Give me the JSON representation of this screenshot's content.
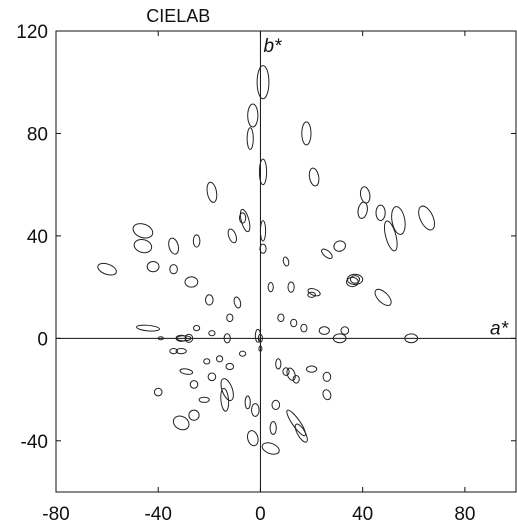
{
  "chart_data": {
    "type": "scatter",
    "title": "CIELAB",
    "xlabel": "a*",
    "ylabel": "b*",
    "xlim": [
      -80,
      100
    ],
    "ylim": [
      -60,
      120
    ],
    "x_ticks": [
      -80,
      -40,
      0,
      40,
      80
    ],
    "y_ticks": [
      -40,
      0,
      40,
      80,
      120
    ],
    "grid": false,
    "axes_through_origin": true,
    "series": [
      {
        "marker": "ellipse",
        "points": [
          {
            "a": 1,
            "b": 100,
            "ra": 2.3,
            "rb": 6.5,
            "angle": 0
          },
          {
            "a": -3,
            "b": 87,
            "ra": 2.0,
            "rb": 4.5,
            "angle": 0
          },
          {
            "a": -4,
            "b": 78,
            "ra": 1.2,
            "rb": 4.2,
            "angle": 0
          },
          {
            "a": 18,
            "b": 80,
            "ra": 1.8,
            "rb": 4.5,
            "angle": 0
          },
          {
            "a": 1,
            "b": 65,
            "ra": 1.4,
            "rb": 5.0,
            "angle": 0
          },
          {
            "a": 21,
            "b": 63,
            "ra": 1.8,
            "rb": 3.5,
            "angle": 10
          },
          {
            "a": -19,
            "b": 57,
            "ra": 1.8,
            "rb": 4.0,
            "angle": 10
          },
          {
            "a": -6,
            "b": 46,
            "ra": 1.5,
            "rb": 4.5,
            "angle": 15
          },
          {
            "a": -7,
            "b": 47,
            "ra": 1.2,
            "rb": 2.0,
            "angle": 0
          },
          {
            "a": 1,
            "b": 42,
            "ra": 1.0,
            "rb": 4.0,
            "angle": 0
          },
          {
            "a": -11,
            "b": 40,
            "ra": 1.4,
            "rb": 2.8,
            "angle": 20
          },
          {
            "a": -25,
            "b": 38,
            "ra": 1.3,
            "rb": 2.4,
            "angle": 0
          },
          {
            "a": -34,
            "b": 36,
            "ra": 1.8,
            "rb": 3.2,
            "angle": 15
          },
          {
            "a": -46,
            "b": 42,
            "ra": 4.0,
            "rb": 2.6,
            "angle": -20
          },
          {
            "a": -46,
            "b": 36,
            "ra": 3.5,
            "rb": 2.5,
            "angle": -15
          },
          {
            "a": -42,
            "b": 28,
            "ra": 2.3,
            "rb": 2.0,
            "angle": 0
          },
          {
            "a": -60,
            "b": 27,
            "ra": 3.8,
            "rb": 2.0,
            "angle": -20
          },
          {
            "a": -27,
            "b": 22,
            "ra": 2.5,
            "rb": 2.0,
            "angle": 0
          },
          {
            "a": -34,
            "b": 27,
            "ra": 1.5,
            "rb": 1.8,
            "angle": 0
          },
          {
            "a": 1,
            "b": 35,
            "ra": 1.2,
            "rb": 1.8,
            "angle": 0
          },
          {
            "a": 10,
            "b": 30,
            "ra": 1.0,
            "rb": 1.8,
            "angle": 15
          },
          {
            "a": 4,
            "b": 20,
            "ra": 1.0,
            "rb": 1.8,
            "angle": 0
          },
          {
            "a": 12,
            "b": 20,
            "ra": 1.2,
            "rb": 2.0,
            "angle": 0
          },
          {
            "a": 21,
            "b": 18,
            "ra": 2.5,
            "rb": 1.2,
            "angle": -20
          },
          {
            "a": 20,
            "b": 17,
            "ra": 1.5,
            "rb": 1.0,
            "angle": 0
          },
          {
            "a": 26,
            "b": 33,
            "ra": 2.5,
            "rb": 1.2,
            "angle": -40
          },
          {
            "a": 31,
            "b": 36,
            "ra": 2.3,
            "rb": 2.0,
            "angle": 20
          },
          {
            "a": 41,
            "b": 56,
            "ra": 1.8,
            "rb": 3.2,
            "angle": 10
          },
          {
            "a": 40,
            "b": 50,
            "ra": 1.8,
            "rb": 3.2,
            "angle": -10
          },
          {
            "a": 47,
            "b": 49,
            "ra": 1.8,
            "rb": 3.0,
            "angle": 0
          },
          {
            "a": 54,
            "b": 46,
            "ra": 2.5,
            "rb": 5.5,
            "angle": 10
          },
          {
            "a": 51,
            "b": 40,
            "ra": 2.0,
            "rb": 6.0,
            "angle": 15
          },
          {
            "a": 65,
            "b": 47,
            "ra": 2.5,
            "rb": 5.0,
            "angle": 25
          },
          {
            "a": 37,
            "b": 23,
            "ra": 3.0,
            "rb": 2.0,
            "angle": 0
          },
          {
            "a": 36,
            "b": 22,
            "ra": 2.3,
            "rb": 1.8,
            "angle": 0
          },
          {
            "a": 37,
            "b": 23,
            "ra": 1.8,
            "rb": 1.5,
            "angle": 0
          },
          {
            "a": 48,
            "b": 16,
            "ra": 2.0,
            "rb": 4.0,
            "angle": 45
          },
          {
            "a": 8,
            "b": 8,
            "ra": 1.2,
            "rb": 1.5,
            "angle": 0
          },
          {
            "a": -20,
            "b": 15,
            "ra": 1.5,
            "rb": 2.0,
            "angle": 0
          },
          {
            "a": -9,
            "b": 14,
            "ra": 1.2,
            "rb": 2.2,
            "angle": 15
          },
          {
            "a": -12,
            "b": 8,
            "ra": 1.2,
            "rb": 1.5,
            "angle": 0
          },
          {
            "a": 13,
            "b": 6,
            "ra": 1.2,
            "rb": 1.5,
            "angle": 0
          },
          {
            "a": 17,
            "b": 4,
            "ra": 1.2,
            "rb": 1.5,
            "angle": 0
          },
          {
            "a": 25,
            "b": 3,
            "ra": 2.0,
            "rb": 1.5,
            "angle": 0
          },
          {
            "a": 33,
            "b": 3,
            "ra": 1.5,
            "rb": 1.5,
            "angle": 0
          },
          {
            "a": 31,
            "b": 0,
            "ra": 2.5,
            "rb": 1.7,
            "angle": 0
          },
          {
            "a": 59,
            "b": 0,
            "ra": 2.5,
            "rb": 1.7,
            "angle": 0
          },
          {
            "a": -44,
            "b": 4,
            "ra": 4.5,
            "rb": 1.1,
            "angle": -5
          },
          {
            "a": -39,
            "b": 0,
            "ra": 1.0,
            "rb": 0.6,
            "angle": 0
          },
          {
            "a": -31,
            "b": 0,
            "ra": 2.0,
            "rb": 1.2,
            "angle": 0
          },
          {
            "a": -30,
            "b": 0,
            "ra": 2.8,
            "rb": 1.0,
            "angle": 0
          },
          {
            "a": -28,
            "b": 0,
            "ra": 1.5,
            "rb": 1.6,
            "angle": 0
          },
          {
            "a": -34,
            "b": -5,
            "ra": 1.5,
            "rb": 1.0,
            "angle": 0
          },
          {
            "a": -31,
            "b": -5,
            "ra": 2.0,
            "rb": 1.0,
            "angle": 0
          },
          {
            "a": -25,
            "b": 4,
            "ra": 1.2,
            "rb": 1.0,
            "angle": 0
          },
          {
            "a": -19,
            "b": 2,
            "ra": 1.2,
            "rb": 1.0,
            "angle": 0
          },
          {
            "a": -13,
            "b": 0,
            "ra": 1.2,
            "rb": 1.8,
            "angle": 0
          },
          {
            "a": -21,
            "b": -9,
            "ra": 1.2,
            "rb": 1.0,
            "angle": 0
          },
          {
            "a": -16,
            "b": -8,
            "ra": 1.2,
            "rb": 1.2,
            "angle": 0
          },
          {
            "a": -7,
            "b": -6,
            "ra": 1.2,
            "rb": 1.0,
            "angle": 0
          },
          {
            "a": -12,
            "b": -11,
            "ra": 1.5,
            "rb": 1.2,
            "angle": 0
          },
          {
            "a": -19,
            "b": -15,
            "ra": 1.5,
            "rb": 1.5,
            "angle": 0
          },
          {
            "a": -29,
            "b": -13,
            "ra": 2.5,
            "rb": 1.0,
            "angle": -10
          },
          {
            "a": -26,
            "b": -18,
            "ra": 1.5,
            "rb": 1.5,
            "angle": 0
          },
          {
            "a": -40,
            "b": -21,
            "ra": 1.5,
            "rb": 1.5,
            "angle": 0
          },
          {
            "a": -13,
            "b": -20,
            "ra": 2.0,
            "rb": 4.5,
            "angle": 20
          },
          {
            "a": -14,
            "b": -24,
            "ra": 1.5,
            "rb": 4.5,
            "angle": 5
          },
          {
            "a": -22,
            "b": -24,
            "ra": 2.0,
            "rb": 1.0,
            "angle": 0
          },
          {
            "a": -26,
            "b": -30,
            "ra": 2.0,
            "rb": 2.0,
            "angle": 0
          },
          {
            "a": -31,
            "b": -33,
            "ra": 3.2,
            "rb": 2.5,
            "angle": -30
          },
          {
            "a": -5,
            "b": -25,
            "ra": 1.0,
            "rb": 2.5,
            "angle": 0
          },
          {
            "a": -2,
            "b": -28,
            "ra": 1.5,
            "rb": 2.5,
            "angle": 0
          },
          {
            "a": -3,
            "b": -39,
            "ra": 2.0,
            "rb": 3.0,
            "angle": 15
          },
          {
            "a": 4,
            "b": -43,
            "ra": 3.5,
            "rb": 2.0,
            "angle": -20
          },
          {
            "a": 5,
            "b": -35,
            "ra": 1.2,
            "rb": 2.5,
            "angle": 0
          },
          {
            "a": 6,
            "b": -26,
            "ra": 1.5,
            "rb": 1.8,
            "angle": 0
          },
          {
            "a": 14,
            "b": -33,
            "ra": 1.5,
            "rb": 6.0,
            "angle": 35
          },
          {
            "a": 16,
            "b": -37,
            "ra": 1.5,
            "rb": 4.0,
            "angle": 30
          },
          {
            "a": 7,
            "b": -10,
            "ra": 1.0,
            "rb": 2.0,
            "angle": 0
          },
          {
            "a": 10,
            "b": -13,
            "ra": 1.2,
            "rb": 1.5,
            "angle": 0
          },
          {
            "a": 12,
            "b": -14,
            "ra": 1.5,
            "rb": 2.5,
            "angle": 20
          },
          {
            "a": 14,
            "b": -16,
            "ra": 1.2,
            "rb": 1.5,
            "angle": 0
          },
          {
            "a": 20,
            "b": -12,
            "ra": 2.0,
            "rb": 1.2,
            "angle": 0
          },
          {
            "a": 26,
            "b": -15,
            "ra": 1.5,
            "rb": 1.8,
            "angle": 0
          },
          {
            "a": 26,
            "b": -22,
            "ra": 1.5,
            "rb": 2.0,
            "angle": 20
          },
          {
            "a": -1,
            "b": 1,
            "ra": 1.0,
            "rb": 2.5,
            "angle": 0
          },
          {
            "a": 0,
            "b": 0,
            "ra": 0.8,
            "rb": 1.6,
            "angle": 0
          },
          {
            "a": 0,
            "b": -4,
            "ra": 0.6,
            "rb": 1.0,
            "angle": 0
          }
        ]
      }
    ]
  }
}
